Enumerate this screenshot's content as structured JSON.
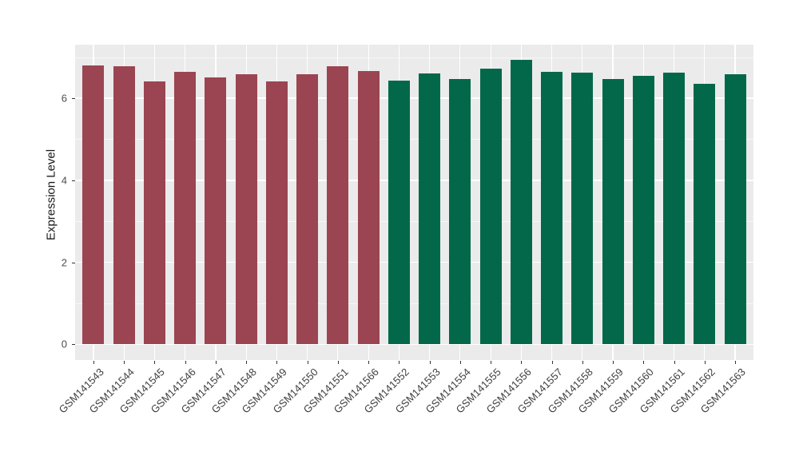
{
  "figure": {
    "background": "#FFFFFF",
    "panel_background": "#EBEBEB",
    "grid_color": "#FFFFFF",
    "axis_text_color": "#4D4D4D",
    "tick_color": "#333333"
  },
  "chart_data": {
    "type": "bar",
    "title": "",
    "xlabel": "",
    "ylabel": "Expression Level",
    "categories": [
      "GSM141543",
      "GSM141544",
      "GSM141545",
      "GSM141546",
      "GSM141547",
      "GSM141548",
      "GSM141549",
      "GSM141550",
      "GSM141551",
      "GSM141566",
      "GSM141552",
      "GSM141553",
      "GSM141554",
      "GSM141555",
      "GSM141556",
      "GSM141557",
      "GSM141558",
      "GSM141559",
      "GSM141560",
      "GSM141561",
      "GSM141562",
      "GSM141563"
    ],
    "values": [
      6.79,
      6.77,
      6.41,
      6.64,
      6.5,
      6.59,
      6.41,
      6.58,
      6.77,
      6.67,
      6.42,
      6.6,
      6.47,
      6.72,
      6.94,
      6.65,
      6.63,
      6.47,
      6.54,
      6.63,
      6.35,
      6.58
    ],
    "bar_groups": [
      0,
      0,
      0,
      0,
      0,
      0,
      0,
      0,
      0,
      0,
      1,
      1,
      1,
      1,
      1,
      1,
      1,
      1,
      1,
      1,
      1,
      1
    ],
    "group_colors": [
      "#9B4452",
      "#026849"
    ],
    "yticks": [
      0,
      2,
      4,
      6
    ],
    "minor_yticks": [
      1,
      3,
      5,
      7
    ],
    "ylim": [
      -0.38,
      7.305
    ],
    "grid": true,
    "legend_position": "none",
    "x_tick_rotation_deg": 45
  }
}
